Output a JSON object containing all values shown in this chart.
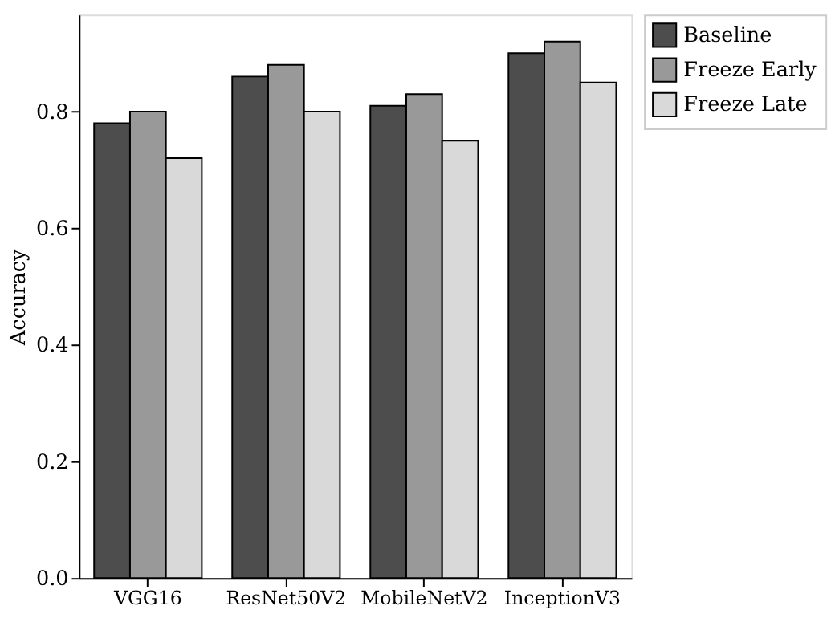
{
  "chart_data": {
    "type": "bar",
    "ylabel": "Accuracy",
    "categories": [
      "VGG16",
      "ResNet50V2",
      "MobileNetV2",
      "InceptionV3"
    ],
    "series": [
      {
        "name": "Baseline",
        "color": "#4d4d4d",
        "values": [
          0.78,
          0.86,
          0.81,
          0.9
        ]
      },
      {
        "name": "Freeze Early",
        "color": "#999999",
        "values": [
          0.8,
          0.88,
          0.83,
          0.92
        ]
      },
      {
        "name": "Freeze Late",
        "color": "#d9d9d9",
        "values": [
          0.72,
          0.8,
          0.75,
          0.85
        ]
      }
    ],
    "ylim": [
      0,
      0.966
    ],
    "yticks": [
      {
        "value": 0,
        "label": "0.0"
      },
      0.2,
      0.4,
      0.6,
      0.8
    ],
    "grid": false,
    "legend": "top right"
  }
}
